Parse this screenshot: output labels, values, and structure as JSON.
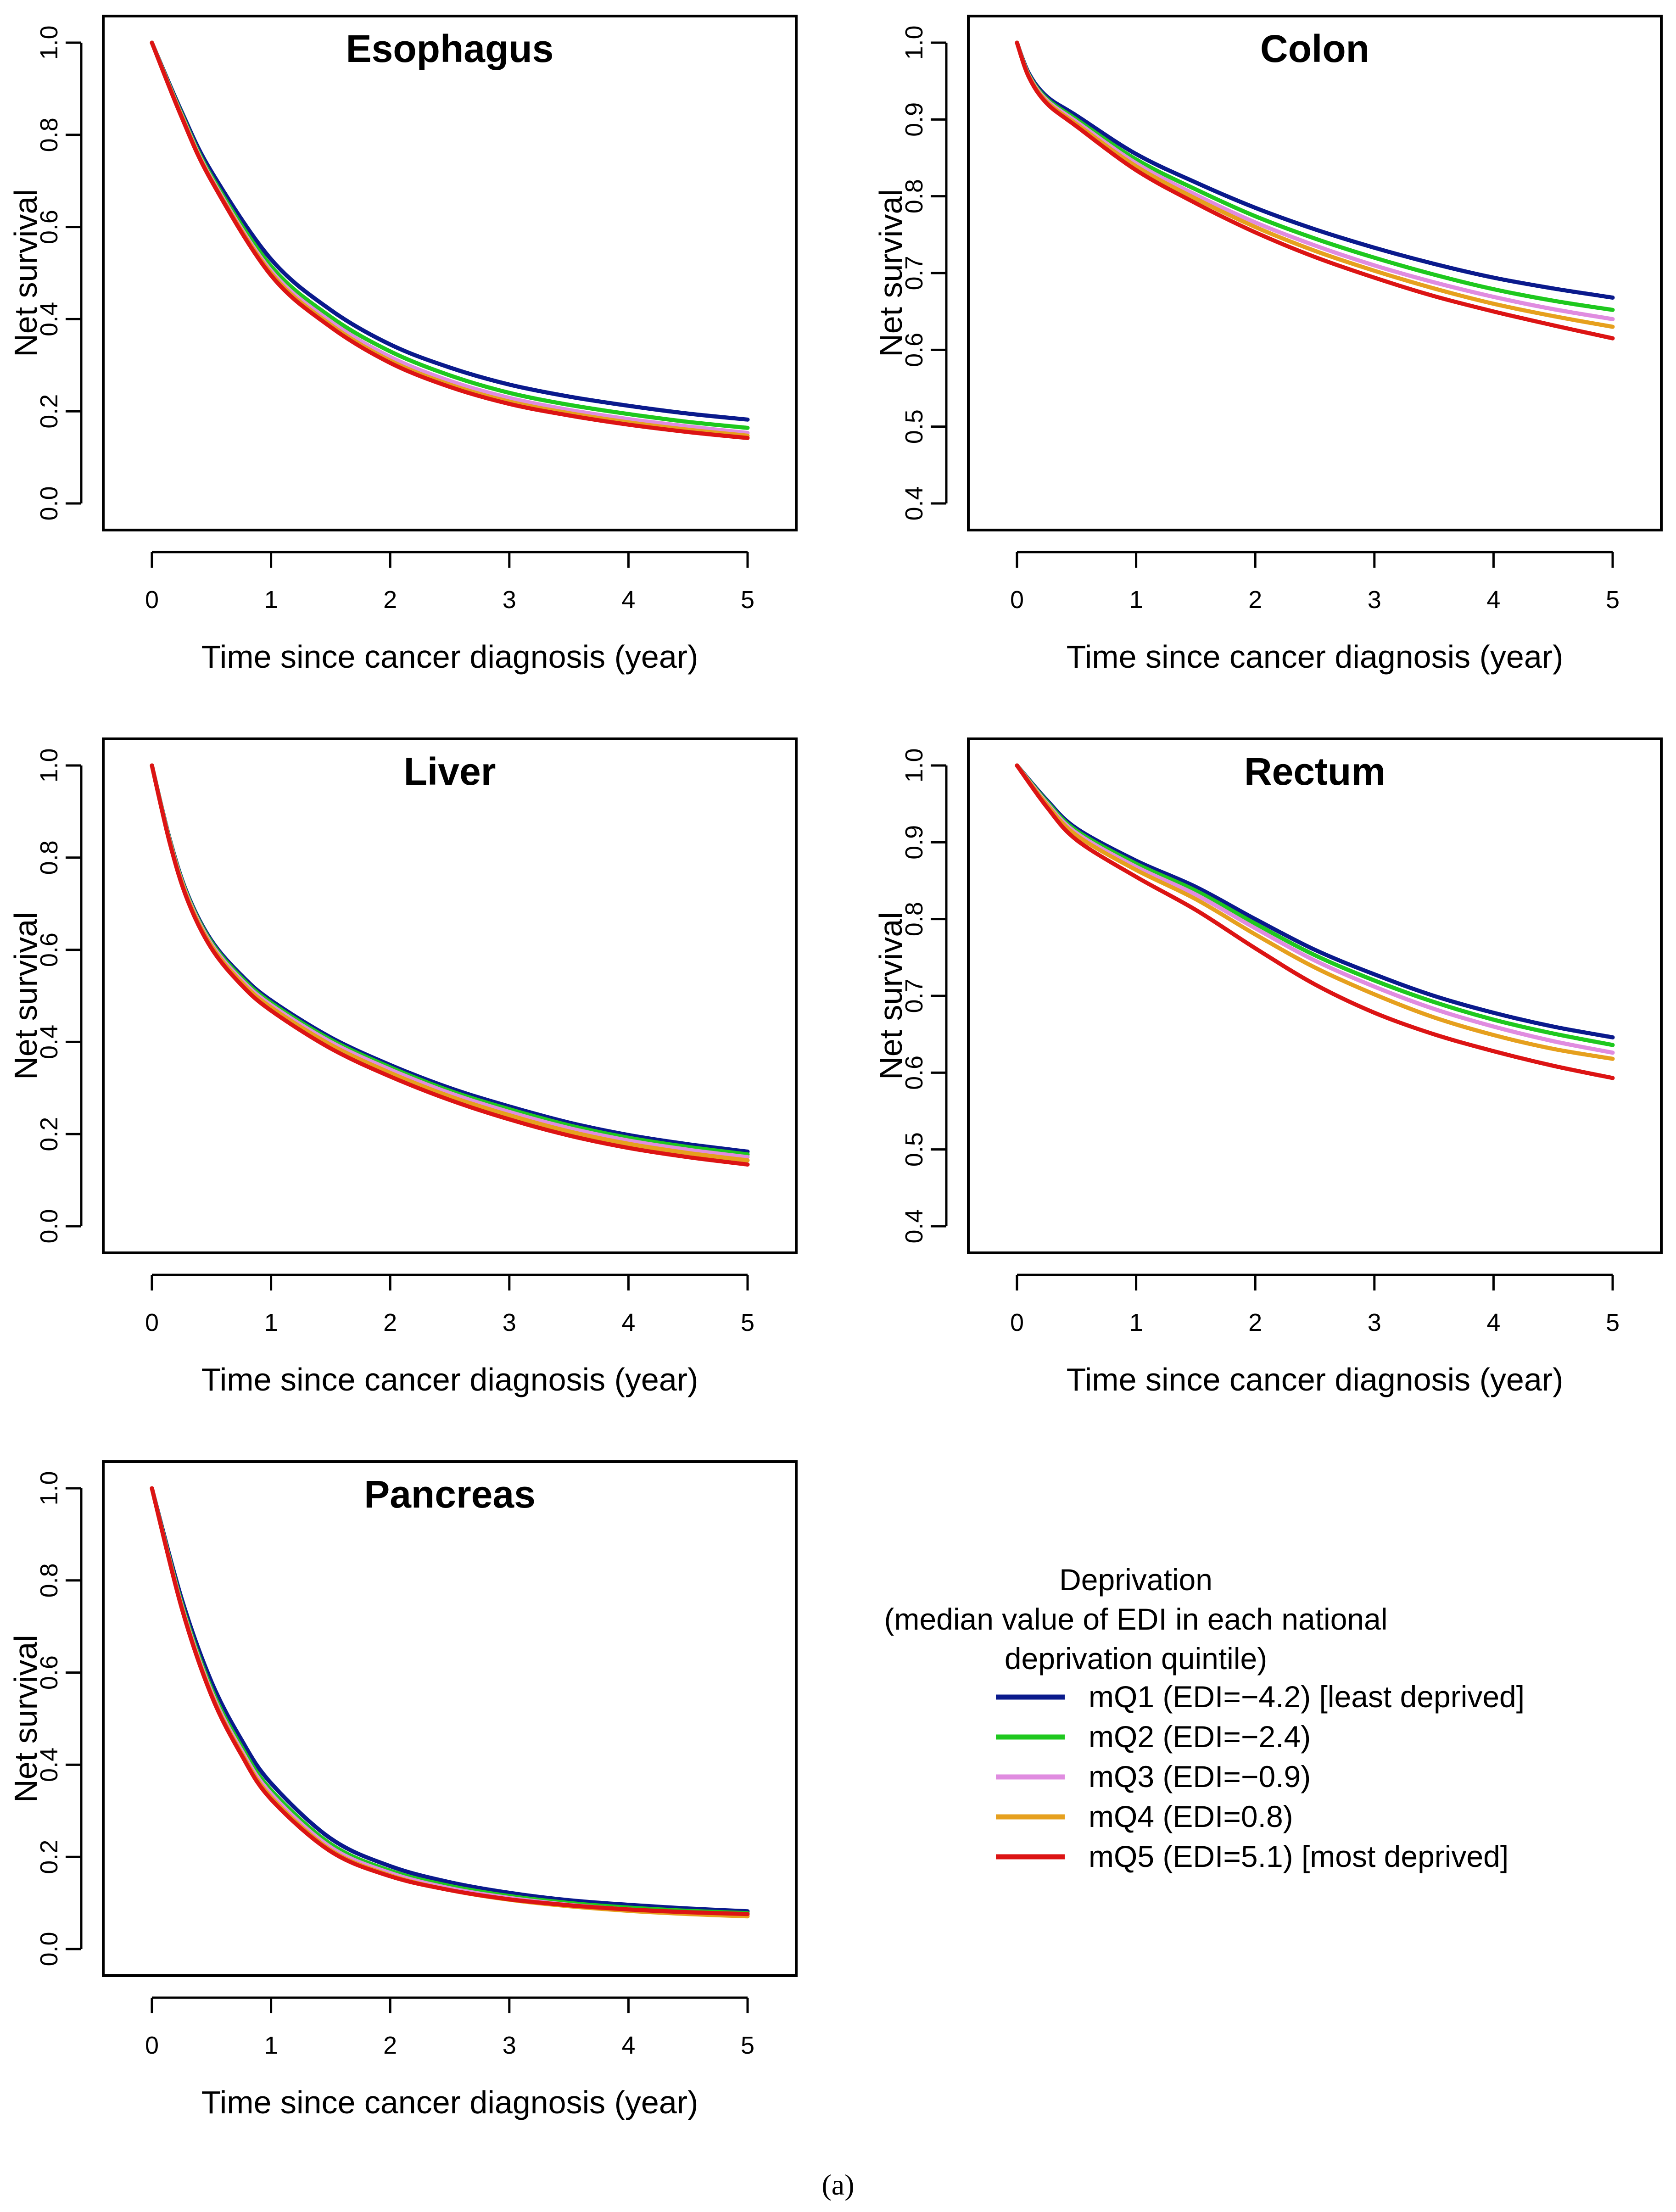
{
  "figure_label": "(a)",
  "series_colors": {
    "mQ1": "#0a1a8c",
    "mQ2": "#1ec81e",
    "mQ3": "#e08ce0",
    "mQ4": "#e6a01e",
    "mQ5": "#dc1414"
  },
  "legend": {
    "title_lines": [
      "Deprivation",
      "(median value of EDI in each national",
      "deprivation quintile)"
    ],
    "entries": [
      {
        "key": "mQ1",
        "label": "mQ1 (EDI=−4.2) [least deprived]"
      },
      {
        "key": "mQ2",
        "label": "mQ2 (EDI=−2.4)"
      },
      {
        "key": "mQ3",
        "label": "mQ3 (EDI=−0.9)"
      },
      {
        "key": "mQ4",
        "label": "mQ4 (EDI=0.8)"
      },
      {
        "key": "mQ5",
        "label": "mQ5 (EDI=5.1) [most deprived]"
      }
    ]
  },
  "chart_data": [
    {
      "type": "line",
      "title": "Esophagus",
      "xlabel": "Time since cancer diagnosis (year)",
      "ylabel": "Net survival",
      "xlim": [
        0,
        5
      ],
      "ylim": [
        0.0,
        1.0
      ],
      "xticks": [
        "0",
        "1",
        "2",
        "3",
        "4",
        "5"
      ],
      "yticks": [
        "0.0",
        "0.2",
        "0.4",
        "0.6",
        "0.8",
        "1.0"
      ],
      "x": [
        0,
        0.25,
        0.5,
        1,
        1.5,
        2,
        2.5,
        3,
        3.5,
        4,
        4.5,
        5
      ],
      "series": [
        {
          "name": "mQ1",
          "values": [
            1.0,
            0.85,
            0.72,
            0.53,
            0.42,
            0.345,
            0.295,
            0.258,
            0.232,
            0.212,
            0.195,
            0.182
          ]
        },
        {
          "name": "mQ2",
          "values": [
            1.0,
            0.845,
            0.71,
            0.515,
            0.405,
            0.33,
            0.278,
            0.24,
            0.214,
            0.194,
            0.177,
            0.164
          ]
        },
        {
          "name": "mQ3",
          "values": [
            1.0,
            0.842,
            0.705,
            0.505,
            0.395,
            0.318,
            0.266,
            0.229,
            0.203,
            0.183,
            0.167,
            0.153
          ]
        },
        {
          "name": "mQ4",
          "values": [
            1.0,
            0.84,
            0.702,
            0.5,
            0.388,
            0.31,
            0.258,
            0.221,
            0.196,
            0.176,
            0.16,
            0.147
          ]
        },
        {
          "name": "mQ5",
          "values": [
            1.0,
            0.838,
            0.7,
            0.495,
            0.383,
            0.305,
            0.253,
            0.216,
            0.191,
            0.171,
            0.155,
            0.142
          ]
        }
      ]
    },
    {
      "type": "line",
      "title": "Colon",
      "xlabel": "Time since cancer diagnosis (year)",
      "ylabel": "Net survival",
      "xlim": [
        0,
        5
      ],
      "ylim": [
        0.4,
        1.0
      ],
      "xticks": [
        "0",
        "1",
        "2",
        "3",
        "4",
        "5"
      ],
      "yticks": [
        "0.4",
        "0.5",
        "0.6",
        "0.7",
        "0.8",
        "0.9",
        "1.0"
      ],
      "x": [
        0,
        0.1,
        0.25,
        0.5,
        1,
        1.5,
        2,
        2.5,
        3,
        3.5,
        4,
        4.5,
        5
      ],
      "series": [
        {
          "name": "mQ1",
          "values": [
            1.0,
            0.96,
            0.93,
            0.905,
            0.855,
            0.818,
            0.785,
            0.757,
            0.733,
            0.712,
            0.694,
            0.68,
            0.668
          ]
        },
        {
          "name": "mQ2",
          "values": [
            1.0,
            0.958,
            0.927,
            0.9,
            0.848,
            0.809,
            0.774,
            0.745,
            0.72,
            0.698,
            0.679,
            0.664,
            0.652
          ]
        },
        {
          "name": "mQ3",
          "values": [
            1.0,
            0.957,
            0.925,
            0.897,
            0.843,
            0.802,
            0.766,
            0.736,
            0.71,
            0.688,
            0.669,
            0.653,
            0.64
          ]
        },
        {
          "name": "mQ4",
          "values": [
            1.0,
            0.956,
            0.923,
            0.894,
            0.839,
            0.797,
            0.76,
            0.729,
            0.703,
            0.68,
            0.66,
            0.644,
            0.63
          ]
        },
        {
          "name": "mQ5",
          "values": [
            1.0,
            0.955,
            0.921,
            0.891,
            0.834,
            0.791,
            0.753,
            0.721,
            0.694,
            0.67,
            0.65,
            0.632,
            0.615
          ]
        }
      ]
    },
    {
      "type": "line",
      "title": "Liver",
      "xlabel": "Time since cancer diagnosis (year)",
      "ylabel": "Net survival",
      "xlim": [
        0,
        5
      ],
      "ylim": [
        0.0,
        1.0
      ],
      "xticks": [
        "0",
        "1",
        "2",
        "3",
        "4",
        "5"
      ],
      "yticks": [
        "0.0",
        "0.2",
        "0.4",
        "0.6",
        "0.8",
        "1.0"
      ],
      "x": [
        0,
        0.15,
        0.3,
        0.5,
        0.75,
        1,
        1.5,
        2,
        2.5,
        3,
        3.5,
        4,
        4.5,
        5
      ],
      "series": [
        {
          "name": "mQ1",
          "values": [
            1.0,
            0.84,
            0.72,
            0.62,
            0.545,
            0.49,
            0.41,
            0.35,
            0.3,
            0.26,
            0.225,
            0.198,
            0.178,
            0.162
          ]
        },
        {
          "name": "mQ2",
          "values": [
            1.0,
            0.838,
            0.717,
            0.616,
            0.54,
            0.485,
            0.405,
            0.345,
            0.294,
            0.254,
            0.219,
            0.192,
            0.172,
            0.156
          ]
        },
        {
          "name": "mQ3",
          "values": [
            1.0,
            0.836,
            0.714,
            0.612,
            0.535,
            0.48,
            0.4,
            0.34,
            0.289,
            0.248,
            0.213,
            0.186,
            0.166,
            0.15
          ]
        },
        {
          "name": "mQ4",
          "values": [
            1.0,
            0.834,
            0.711,
            0.608,
            0.53,
            0.475,
            0.394,
            0.333,
            0.282,
            0.241,
            0.206,
            0.179,
            0.159,
            0.143
          ]
        },
        {
          "name": "mQ5",
          "values": [
            1.0,
            0.832,
            0.707,
            0.603,
            0.524,
            0.468,
            0.386,
            0.325,
            0.274,
            0.232,
            0.197,
            0.17,
            0.15,
            0.134
          ]
        }
      ]
    },
    {
      "type": "line",
      "title": "Rectum",
      "xlabel": "Time since cancer diagnosis (year)",
      "ylabel": "Net survival",
      "xlim": [
        0,
        5
      ],
      "ylim": [
        0.4,
        1.0
      ],
      "xticks": [
        "0",
        "1",
        "2",
        "3",
        "4",
        "5"
      ],
      "yticks": [
        "0.4",
        "0.5",
        "0.6",
        "0.7",
        "0.8",
        "0.9",
        "1.0"
      ],
      "x": [
        0,
        0.25,
        0.5,
        1,
        1.5,
        2,
        2.5,
        3,
        3.5,
        4,
        4.5,
        5
      ],
      "series": [
        {
          "name": "mQ1",
          "values": [
            1.0,
            0.955,
            0.918,
            0.876,
            0.842,
            0.8,
            0.76,
            0.728,
            0.7,
            0.678,
            0.66,
            0.646
          ]
        },
        {
          "name": "mQ2",
          "values": [
            1.0,
            0.953,
            0.915,
            0.872,
            0.837,
            0.794,
            0.753,
            0.72,
            0.692,
            0.669,
            0.651,
            0.636
          ]
        },
        {
          "name": "mQ3",
          "values": [
            1.0,
            0.951,
            0.912,
            0.868,
            0.832,
            0.788,
            0.746,
            0.712,
            0.683,
            0.66,
            0.641,
            0.626
          ]
        },
        {
          "name": "mQ4",
          "values": [
            1.0,
            0.949,
            0.909,
            0.864,
            0.826,
            0.78,
            0.737,
            0.702,
            0.672,
            0.649,
            0.631,
            0.618
          ]
        },
        {
          "name": "mQ5",
          "values": [
            1.0,
            0.946,
            0.903,
            0.855,
            0.812,
            0.762,
            0.715,
            0.678,
            0.65,
            0.628,
            0.609,
            0.593
          ]
        }
      ]
    },
    {
      "type": "line",
      "title": "Pancreas",
      "xlabel": "Time since cancer diagnosis (year)",
      "ylabel": "Net survival",
      "xlim": [
        0,
        5
      ],
      "ylim": [
        0.0,
        1.0
      ],
      "xticks": [
        "0",
        "1",
        "2",
        "3",
        "4",
        "5"
      ],
      "yticks": [
        "0.0",
        "0.2",
        "0.4",
        "0.6",
        "0.8",
        "1.0"
      ],
      "x": [
        0,
        0.25,
        0.5,
        0.75,
        1,
        1.5,
        2,
        2.5,
        3,
        3.5,
        4,
        4.5,
        5
      ],
      "series": [
        {
          "name": "mQ1",
          "values": [
            1.0,
            0.76,
            0.58,
            0.455,
            0.36,
            0.24,
            0.18,
            0.145,
            0.122,
            0.106,
            0.096,
            0.088,
            0.082
          ]
        },
        {
          "name": "mQ2",
          "values": [
            1.0,
            0.75,
            0.565,
            0.44,
            0.345,
            0.228,
            0.17,
            0.137,
            0.115,
            0.1,
            0.09,
            0.083,
            0.078
          ]
        },
        {
          "name": "mQ3",
          "values": [
            1.0,
            0.745,
            0.558,
            0.432,
            0.337,
            0.221,
            0.165,
            0.132,
            0.111,
            0.096,
            0.086,
            0.079,
            0.074
          ]
        },
        {
          "name": "mQ4",
          "values": [
            1.0,
            0.742,
            0.553,
            0.426,
            0.33,
            0.215,
            0.16,
            0.128,
            0.107,
            0.093,
            0.083,
            0.076,
            0.071
          ]
        },
        {
          "name": "mQ5",
          "values": [
            1.0,
            0.74,
            0.55,
            0.422,
            0.325,
            0.212,
            0.158,
            0.128,
            0.108,
            0.095,
            0.086,
            0.08,
            0.076
          ]
        }
      ]
    }
  ]
}
